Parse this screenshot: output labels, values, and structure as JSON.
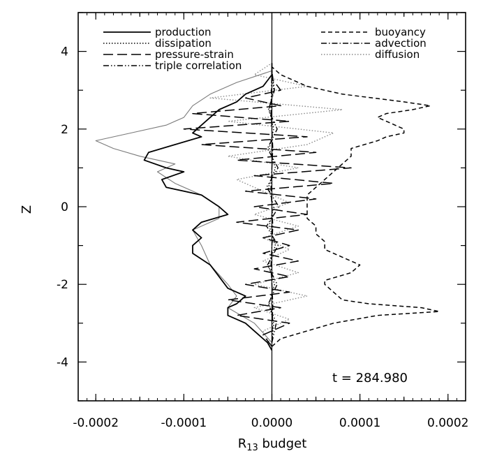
{
  "chart_data": {
    "type": "line",
    "title": "",
    "xlabel": "R",
    "xlabel_sub": "13",
    "xlabel_suffix": " budget",
    "ylabel": "Z",
    "xlim": [
      -0.00022,
      0.00022
    ],
    "ylim": [
      -5,
      5
    ],
    "xtick_values": [
      -0.0002,
      -0.0001,
      0,
      0.0001,
      0.0002
    ],
    "xtick_labels": [
      "-0.0002",
      "-0.0001",
      "0.0000",
      "0.0001",
      "0.0002"
    ],
    "ytick_values": [
      -4,
      -2,
      0,
      2,
      4
    ],
    "ytick_labels": [
      "-4",
      "-2",
      "0",
      "2",
      "4"
    ],
    "annotation": "t = 284.980",
    "grid": false,
    "series": [
      {
        "name": "production",
        "dash": "solid",
        "z": [
          -3.7,
          -3.5,
          -3.2,
          -3.0,
          -2.8,
          -2.6,
          -2.5,
          -2.3,
          -2.1,
          -1.8,
          -1.5,
          -1.2,
          -1.0,
          -0.8,
          -0.6,
          -0.4,
          -0.2,
          0.0,
          0.3,
          0.5,
          0.7,
          0.9,
          1.0,
          1.2,
          1.4,
          1.6,
          1.8,
          1.9,
          2.1,
          2.3,
          2.5,
          2.7,
          2.9,
          3.1,
          3.4,
          3.7
        ],
        "x": [
          0.0,
          -5e-06,
          -2e-05,
          -3e-05,
          -5e-05,
          -5e-05,
          -4e-05,
          -3e-05,
          -5e-05,
          -6e-05,
          -7e-05,
          -9e-05,
          -9e-05,
          -8e-05,
          -9e-05,
          -8e-05,
          -5e-05,
          -6e-05,
          -8e-05,
          -0.00012,
          -0.000125,
          -0.0001,
          -0.00012,
          -0.000145,
          -0.00014,
          -0.00011,
          -8e-05,
          -9e-05,
          -8e-05,
          -7e-05,
          -6e-05,
          -4e-05,
          -3e-05,
          -1e-05,
          0.0,
          0.0
        ]
      },
      {
        "name": "dissipation",
        "dash": "dotted",
        "z": [
          -3.5,
          -3.0,
          -2.5,
          -2.0,
          -1.5,
          -1.0,
          -0.5,
          0.0,
          0.5,
          1.0,
          1.5,
          2.0,
          2.5,
          3.0,
          3.5
        ],
        "x": [
          0.0,
          2e-06,
          -3e-06,
          3e-06,
          -4e-06,
          4e-06,
          -3e-06,
          2e-06,
          -4e-06,
          4e-06,
          -3e-06,
          2e-06,
          -3e-06,
          2e-06,
          0.0
        ]
      },
      {
        "name": "pressure-strain",
        "dash": "longdash",
        "z": [
          -3.6,
          -3.3,
          -3.0,
          -2.8,
          -2.6,
          -2.4,
          -2.2,
          -2.0,
          -1.8,
          -1.6,
          -1.4,
          -1.2,
          -1.0,
          -0.8,
          -0.6,
          -0.4,
          -0.2,
          0.0,
          0.2,
          0.4,
          0.6,
          0.8,
          1.0,
          1.2,
          1.4,
          1.6,
          1.8,
          2.0,
          2.2,
          2.4,
          2.6,
          2.8,
          3.0,
          3.3,
          3.6
        ],
        "x": [
          0.0,
          -1e-05,
          2e-05,
          -4e-05,
          1e-05,
          -5e-05,
          2e-05,
          -3e-05,
          2e-05,
          -2e-05,
          3e-05,
          -1e-05,
          2e-05,
          -1e-05,
          3e-05,
          -4e-05,
          4e-05,
          -2e-05,
          5e-05,
          -3e-05,
          7e-05,
          -2e-05,
          9e-05,
          -4e-05,
          5e-05,
          -8e-05,
          4e-05,
          -0.0001,
          2e-05,
          -9e-05,
          1e-05,
          -3e-05,
          1e-05,
          0.0,
          0.0
        ]
      },
      {
        "name": "triple correlation",
        "dash": "dashdotdot",
        "z": [
          -3.5,
          -3.0,
          -2.5,
          -2.0,
          -1.5,
          -1.0,
          -0.5,
          0.0,
          0.5,
          1.0,
          1.5,
          2.0,
          2.5,
          3.0,
          3.5
        ],
        "x": [
          0.0,
          5e-06,
          -4e-06,
          6e-06,
          -5e-06,
          7e-06,
          -6e-06,
          8e-06,
          -6e-06,
          7e-06,
          -5e-06,
          6e-06,
          -4e-06,
          3e-06,
          0.0
        ]
      },
      {
        "name": "buoyancy",
        "dash": "dashed",
        "z": [
          -3.6,
          -3.4,
          -3.2,
          -3.0,
          -2.8,
          -2.7,
          -2.6,
          -2.5,
          -2.4,
          -2.2,
          -2.0,
          -1.9,
          -1.7,
          -1.5,
          -1.3,
          -1.1,
          -0.9,
          -0.7,
          -0.5,
          -0.3,
          -0.1,
          0.1,
          0.3,
          0.5,
          0.7,
          0.9,
          1.1,
          1.3,
          1.5,
          1.7,
          1.8,
          1.9,
          2.0,
          2.2,
          2.3,
          2.4,
          2.5,
          2.6,
          2.7,
          2.9,
          3.1,
          3.4,
          3.6
        ],
        "x": [
          0.0,
          1e-05,
          4e-05,
          7e-05,
          0.00012,
          0.00019,
          0.00017,
          0.00011,
          8e-05,
          7e-05,
          6e-05,
          6e-05,
          9e-05,
          0.0001,
          8e-05,
          6e-05,
          6e-05,
          5e-05,
          5e-05,
          4e-05,
          4e-05,
          4e-05,
          4e-05,
          5e-05,
          6e-05,
          7e-05,
          8e-05,
          9e-05,
          9e-05,
          0.00012,
          0.00013,
          0.00015,
          0.00015,
          0.00013,
          0.00012,
          0.00013,
          0.00016,
          0.00018,
          0.00015,
          8e-05,
          4e-05,
          1e-05,
          0.0
        ]
      },
      {
        "name": "advection",
        "dash": "dashdot",
        "z": [
          -3.5,
          -2.5,
          -1.5,
          -0.5,
          0.5,
          1.5,
          2.5,
          3.5
        ],
        "x": [
          0.0,
          1e-06,
          -1e-06,
          1e-06,
          -1e-06,
          1e-06,
          -1e-06,
          0.0
        ]
      },
      {
        "name": "diffusion",
        "dash": "dotted-gray",
        "z": [
          -3.6,
          -3.2,
          -2.9,
          -2.6,
          -2.3,
          -2.0,
          -1.7,
          -1.4,
          -1.1,
          -0.8,
          -0.5,
          -0.2,
          0.1,
          0.4,
          0.7,
          1.0,
          1.3,
          1.6,
          1.9,
          2.2,
          2.5,
          2.8,
          3.1,
          3.4,
          3.7
        ],
        "x": [
          0.0,
          -1e-05,
          2e-05,
          -2e-05,
          4e-05,
          -2e-05,
          3e-05,
          -1e-05,
          2e-05,
          -1e-05,
          3e-05,
          -2e-05,
          2e-05,
          -1e-05,
          -4e-05,
          3e-05,
          -5e-05,
          4e-05,
          7e-05,
          -5e-05,
          8e-05,
          -7e-05,
          4e-05,
          -2e-05,
          0.0
        ]
      },
      {
        "name": "",
        "dash": "thin-gray",
        "z": [
          -3.5,
          -3.0,
          -2.6,
          -2.3,
          -2.0,
          -1.5,
          -1.0,
          -0.6,
          -0.3,
          0.0,
          0.3,
          0.6,
          0.9,
          1.1,
          1.3,
          1.5,
          1.7,
          1.9,
          2.1,
          2.3,
          2.6,
          2.9,
          3.2,
          3.5
        ],
        "x": [
          0.0,
          -2e-05,
          -5e-05,
          -4e-05,
          -5e-05,
          -7e-05,
          -8e-05,
          -9e-05,
          -6e-05,
          -6e-05,
          -8e-05,
          -0.00011,
          -0.00013,
          -0.00011,
          -0.00015,
          -0.00018,
          -0.0002,
          -0.00016,
          -0.00012,
          -0.0001,
          -9e-05,
          -7e-05,
          -4e-05,
          0.0
        ]
      }
    ]
  }
}
